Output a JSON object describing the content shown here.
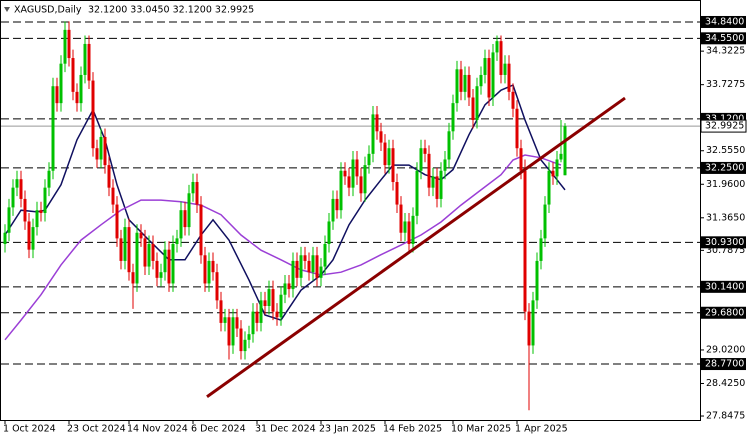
{
  "chart_data": {
    "type": "candlestick",
    "title": "XAGUSD,Daily",
    "subtitle": "32.1200 33.0450 32.1200 32.9925",
    "up_color": "#00c000",
    "down_color": "#e00000",
    "categories": [
      "1 Oct 2024",
      null,
      null,
      null,
      null,
      null,
      null,
      null,
      null,
      null,
      null,
      null,
      null,
      null,
      null,
      null,
      "23 Oct 2024",
      null,
      null,
      null,
      null,
      null,
      null,
      null,
      null,
      null,
      null,
      null,
      null,
      null,
      null,
      "14 Nov 2024",
      null,
      null,
      null,
      null,
      null,
      null,
      null,
      null,
      null,
      null,
      null,
      null,
      null,
      null,
      null,
      "6 Dec 2024",
      null,
      null,
      null,
      null,
      null,
      null,
      null,
      null,
      null,
      null,
      null,
      null,
      null,
      null,
      null,
      "31 Dec 2024",
      null,
      null,
      null,
      null,
      null,
      null,
      null,
      null,
      null,
      null,
      null,
      null,
      null,
      null,
      null,
      "23 Jan 2025",
      null,
      null,
      null,
      null,
      null,
      null,
      null,
      null,
      null,
      null,
      null,
      null,
      null,
      null,
      null,
      "14 Feb 2025",
      null,
      null,
      null,
      null,
      null,
      null,
      null,
      null,
      null,
      null,
      null,
      null,
      null,
      null,
      null,
      null,
      "10 Mar 2025",
      null,
      null,
      null,
      null,
      null,
      null,
      null,
      null,
      null,
      null,
      null,
      null,
      null,
      null,
      null,
      "1 Apr 2025",
      null,
      null,
      null,
      null,
      null,
      null,
      null,
      null,
      null,
      null,
      null,
      null
    ],
    "open": [
      30.9,
      31.1,
      31.55,
      31.9,
      32.05,
      31.7,
      31.3,
      30.8,
      31.2,
      31.5,
      31.45,
      31.9,
      32.2,
      33.7,
      33.4,
      34.1,
      34.7,
      34.2,
      33.6,
      33.4,
      33.9,
      34.45,
      33.8,
      32.6,
      32.4,
      32.8,
      32.3,
      31.9,
      31.6,
      31.0,
      30.6,
      31.2,
      30.4,
      30.2,
      31.1,
      31.0,
      30.5,
      30.9,
      30.6,
      30.3,
      30.4,
      30.8,
      30.2,
      30.9,
      31.0,
      31.5,
      31.2,
      31.8,
      32.0,
      31.6,
      30.7,
      30.2,
      30.6,
      30.4,
      29.9,
      29.5,
      29.6,
      29.1,
      29.6,
      29.4,
      29.0,
      29.2,
      29.3,
      29.7,
      29.5,
      29.9,
      29.8,
      30.1,
      29.7,
      29.6,
      30.0,
      30.2,
      30.1,
      30.6,
      30.3,
      30.7,
      30.6,
      30.4,
      30.7,
      30.3,
      30.5,
      30.9,
      31.3,
      31.7,
      31.5,
      32.2,
      32.1,
      31.9,
      32.4,
      32.1,
      31.8,
      32.3,
      32.5,
      33.2,
      32.9,
      32.7,
      32.3,
      32.6,
      32.0,
      31.6,
      31.1,
      31.3,
      30.9,
      31.4,
      32.2,
      32.6,
      32.5,
      31.9,
      32.1,
      31.7,
      32.2,
      32.4,
      32.9,
      33.4,
      34.0,
      33.6,
      33.9,
      33.5,
      33.1,
      33.7,
      33.9,
      34.2,
      33.5,
      34.3,
      34.5,
      33.9,
      34.1,
      33.6,
      33.3,
      32.6,
      32.2,
      29.7,
      29.1,
      29.9,
      30.6,
      31.0,
      31.6,
      32.2,
      32.1,
      32.4,
      32.12
    ],
    "high": [
      31.25,
      31.7,
      32.05,
      32.2,
      32.2,
      31.85,
      31.45,
      31.35,
      31.65,
      31.65,
      32.05,
      32.35,
      33.85,
      33.85,
      34.25,
      34.85,
      34.85,
      34.35,
      33.75,
      34.05,
      34.6,
      34.6,
      33.95,
      32.75,
      32.95,
      32.95,
      32.45,
      32.05,
      31.75,
      31.15,
      31.35,
      31.35,
      30.55,
      31.25,
      31.25,
      31.15,
      31.05,
      31.05,
      30.75,
      30.55,
      30.95,
      30.95,
      31.05,
      31.15,
      31.65,
      31.65,
      31.95,
      32.15,
      32.15,
      31.75,
      30.85,
      30.75,
      30.75,
      30.55,
      30.05,
      29.75,
      29.75,
      29.75,
      29.75,
      29.55,
      29.35,
      29.45,
      29.85,
      29.85,
      30.05,
      30.05,
      30.25,
      30.25,
      29.85,
      30.15,
      30.35,
      30.35,
      30.75,
      30.75,
      30.85,
      30.85,
      30.75,
      30.85,
      30.85,
      30.65,
      31.05,
      31.45,
      31.85,
      31.85,
      32.35,
      32.35,
      32.25,
      32.55,
      32.55,
      32.25,
      32.45,
      32.65,
      33.35,
      33.35,
      33.05,
      32.85,
      32.75,
      32.75,
      32.15,
      31.75,
      31.45,
      31.45,
      31.55,
      32.35,
      32.75,
      32.75,
      32.65,
      32.25,
      32.25,
      32.35,
      32.55,
      33.05,
      33.55,
      34.15,
      34.15,
      34.05,
      34.05,
      33.65,
      33.85,
      34.05,
      34.35,
      34.35,
      34.45,
      34.6,
      34.6,
      34.25,
      34.25,
      33.75,
      33.45,
      32.75,
      32.4,
      29.85,
      30.05,
      30.75,
      31.15,
      31.75,
      32.35,
      32.35,
      32.55,
      33.1,
      33.045
    ],
    "low": [
      30.75,
      30.95,
      31.4,
      31.75,
      31.55,
      31.15,
      30.65,
      30.65,
      31.05,
      31.3,
      31.3,
      31.75,
      32.05,
      33.25,
      33.25,
      33.95,
      34.05,
      33.45,
      33.25,
      33.25,
      33.75,
      33.65,
      32.45,
      32.25,
      32.25,
      32.15,
      31.75,
      31.45,
      30.85,
      30.45,
      30.45,
      30.25,
      29.75,
      30.05,
      30.85,
      30.35,
      30.35,
      30.45,
      30.15,
      30.15,
      30.25,
      30.05,
      30.05,
      30.75,
      30.85,
      31.05,
      31.05,
      31.65,
      31.45,
      30.55,
      30.05,
      30.05,
      30.25,
      29.75,
      29.35,
      29.35,
      28.85,
      28.95,
      29.25,
      28.85,
      28.85,
      29.05,
      29.15,
      29.35,
      29.35,
      29.65,
      29.65,
      29.55,
      29.45,
      29.45,
      29.85,
      29.95,
      29.95,
      30.15,
      30.15,
      30.45,
      30.25,
      30.25,
      30.15,
      30.15,
      30.35,
      30.75,
      31.15,
      31.35,
      31.35,
      31.95,
      31.75,
      31.75,
      31.95,
      31.65,
      31.65,
      32.15,
      32.35,
      32.75,
      32.55,
      32.15,
      32.15,
      31.85,
      31.45,
      30.95,
      30.95,
      30.75,
      30.75,
      31.25,
      32.05,
      32.35,
      31.75,
      31.75,
      31.55,
      31.55,
      32.05,
      32.25,
      32.75,
      33.25,
      33.45,
      33.45,
      33.35,
      32.95,
      32.95,
      33.55,
      33.75,
      33.35,
      33.35,
      34.15,
      33.75,
      33.75,
      33.45,
      33.15,
      32.45,
      32.05,
      29.55,
      27.95,
      28.95,
      29.75,
      30.45,
      30.85,
      31.45,
      31.95,
      31.95,
      32.35,
      32.12
    ],
    "close": [
      31.1,
      31.55,
      31.9,
      32.05,
      31.7,
      31.3,
      30.8,
      31.2,
      31.5,
      31.45,
      31.9,
      32.2,
      33.7,
      33.4,
      34.1,
      34.7,
      34.2,
      33.6,
      33.4,
      33.9,
      34.45,
      33.8,
      32.6,
      32.4,
      32.8,
      32.3,
      31.9,
      31.6,
      31.0,
      30.6,
      31.2,
      30.4,
      30.2,
      31.1,
      31.0,
      30.5,
      30.9,
      30.6,
      30.3,
      30.4,
      30.8,
      30.2,
      30.9,
      31.0,
      31.5,
      31.2,
      31.8,
      32.0,
      31.6,
      30.7,
      30.2,
      30.6,
      30.4,
      29.9,
      29.5,
      29.6,
      29.1,
      29.6,
      29.4,
      29.0,
      29.2,
      29.3,
      29.7,
      29.5,
      29.9,
      29.8,
      30.1,
      29.7,
      29.6,
      30.0,
      30.2,
      30.1,
      30.6,
      30.3,
      30.7,
      30.6,
      30.4,
      30.7,
      30.3,
      30.5,
      30.9,
      31.3,
      31.7,
      31.5,
      32.2,
      32.1,
      31.9,
      32.4,
      32.1,
      31.8,
      32.3,
      32.5,
      33.2,
      32.9,
      32.7,
      32.3,
      32.6,
      32.0,
      31.6,
      31.1,
      31.3,
      30.9,
      31.4,
      32.2,
      32.6,
      32.5,
      31.9,
      32.1,
      31.7,
      32.2,
      32.4,
      32.9,
      33.4,
      34.0,
      33.6,
      33.9,
      33.5,
      33.1,
      33.7,
      33.9,
      34.2,
      33.5,
      34.3,
      34.5,
      33.9,
      34.1,
      33.6,
      33.3,
      32.6,
      32.2,
      29.7,
      29.1,
      29.9,
      30.6,
      31.0,
      31.6,
      32.2,
      32.1,
      32.4,
      32.5,
      32.9925
    ],
    "series": [
      {
        "color": "#101060",
        "x": [
          0,
          4,
          8,
          10,
          14,
          18,
          22,
          25,
          28,
          31,
          36,
          41,
          45,
          49,
          52,
          56,
          61,
          65,
          69,
          74,
          79,
          82,
          86,
          90,
          94,
          97,
          101,
          105,
          109,
          112,
          116,
          120,
          124,
          127,
          130,
          134,
          137,
          140
        ],
        "values": [
          31.06,
          31.5,
          31.47,
          31.5,
          31.95,
          32.75,
          33.28,
          32.75,
          31.95,
          31.33,
          30.97,
          30.62,
          30.62,
          31.06,
          31.33,
          30.97,
          30.26,
          29.64,
          29.55,
          30.08,
          30.35,
          30.62,
          31.24,
          31.68,
          32.04,
          32.3,
          32.3,
          32.13,
          32.04,
          32.22,
          32.84,
          33.37,
          33.63,
          33.72,
          33.1,
          32.39,
          32.13,
          31.86
        ]
      },
      {
        "color": "#9b3fd6",
        "x": [
          0,
          4,
          9,
          14,
          19,
          24,
          29,
          34,
          39,
          44,
          49,
          54,
          59,
          64,
          69,
          74,
          79,
          84,
          89,
          94,
          99,
          104,
          109,
          114,
          119,
          124,
          127,
          130,
          134,
          139
        ],
        "values": [
          29.2,
          29.55,
          30.0,
          30.53,
          30.97,
          31.24,
          31.5,
          31.68,
          31.68,
          31.65,
          31.59,
          31.42,
          31.06,
          30.79,
          30.62,
          30.44,
          30.35,
          30.4,
          30.53,
          30.71,
          30.88,
          31.06,
          31.29,
          31.59,
          31.86,
          32.13,
          32.39,
          32.48,
          32.43,
          32.3
        ]
      }
    ],
    "trendline": {
      "color": "#8b0000",
      "x": [
        50.5,
        155
      ],
      "values": [
        28.19,
        33.49
      ]
    },
    "ylim": [
      27.777,
      35.23
    ],
    "yticks": [
      34.3225,
      33.7275,
      {
        "value": 32.555,
        "label": "32.5550"
      },
      {
        "value": 31.96,
        "label": "31.9600"
      },
      {
        "value": 31.365,
        "label": "31.3650"
      },
      30.7875,
      {
        "value": 29.02,
        "label": "29.0200"
      },
      {
        "value": 28.425,
        "label": "28.4250"
      },
      27.8475
    ],
    "levels": [
      {
        "value": 34.84,
        "label": "34.8400"
      },
      {
        "value": 34.55,
        "label": "34.5500"
      },
      {
        "value": 33.12,
        "label": "33.1200"
      },
      {
        "value": 32.25,
        "label": "32.2500"
      },
      {
        "value": 30.93,
        "label": "30.9300"
      },
      {
        "value": 30.14,
        "label": "30.1400"
      },
      {
        "value": 29.68,
        "label": "29.6800"
      },
      {
        "value": 28.77,
        "label": "28.7700"
      }
    ],
    "current_price": {
      "value": 32.9925,
      "label": "32.9925"
    }
  }
}
